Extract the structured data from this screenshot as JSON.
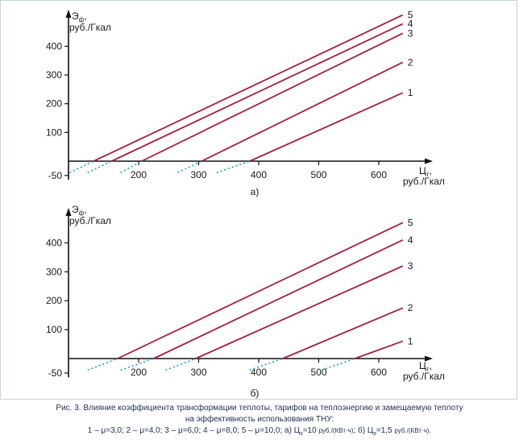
{
  "charts": [
    {
      "panel_label": "а)",
      "y_label_top": "Э",
      "y_label_sub": "ф",
      "y_label_bottom": "руб./Гкал",
      "x_label_top": "Ц",
      "x_label_sub": "т",
      "x_label_bottom": "руб./Гкал"
    },
    {
      "panel_label": "б)",
      "y_label_top": "Э",
      "y_label_sub": "ф",
      "y_label_bottom": "руб./Гкал",
      "x_label_top": "Ц",
      "x_label_sub": "т",
      "x_label_bottom": "руб./Гкал"
    }
  ],
  "caption": {
    "line1": "Рис. 3. Влияние коэффициента трансформации теплоты, тарифов на теплоэнергию и замещаемую теплоту",
    "line2": "на эффективность использования ТНУ:",
    "line3_a": "1 – μ=3,0; 2 – μ=4,0; 3 – μ=6,0; 4 – μ=8,0; 5 – μ=10,0; а) Ц",
    "line3_sub1": "э",
    "line3_b": "=10",
    "line3_unit1": "руб./(КВт·ч)",
    "line3_c": "; б) Ц",
    "line3_sub2": "э",
    "line3_d": "=1,5",
    "line3_unit2": "руб./(КВт·ч)",
    "line3_e": "."
  },
  "colors": {
    "series_line": "#a3203d",
    "dotted_extension": "#1f9bd7",
    "axis": "#111111",
    "frame": "#c8d4e3"
  },
  "chart_data": [
    {
      "type": "line",
      "xlim": [
        0,
        650
      ],
      "ylim": [
        -70,
        500
      ],
      "x_ticks": [
        200,
        300,
        400,
        500,
        600
      ],
      "y_ticks": [
        -50,
        100,
        200,
        300,
        400
      ],
      "grid": false,
      "series": [
        {
          "name": "1",
          "solid": [
            [
              385,
              0
            ],
            [
              640,
              238
            ]
          ],
          "dotted": [
            [
              330,
              -40
            ],
            [
              385,
              0
            ]
          ]
        },
        {
          "name": "2",
          "solid": [
            [
              305,
              0
            ],
            [
              640,
              344
            ]
          ],
          "dotted": [
            [
              265,
              -40
            ],
            [
              305,
              0
            ]
          ]
        },
        {
          "name": "3",
          "solid": [
            [
              205,
              0
            ],
            [
              640,
              445
            ]
          ],
          "dotted": [
            [
              170,
              -40
            ],
            [
              205,
              0
            ]
          ]
        },
        {
          "name": "4",
          "solid": [
            [
              155,
              0
            ],
            [
              640,
              478
            ]
          ],
          "dotted": [
            [
              115,
              -40
            ],
            [
              155,
              0
            ]
          ]
        },
        {
          "name": "5",
          "solid": [
            [
              125,
              0
            ],
            [
              640,
              509
            ]
          ],
          "dotted": [
            [
              85,
              -40
            ],
            [
              125,
              0
            ]
          ]
        }
      ]
    },
    {
      "type": "line",
      "xlim": [
        0,
        650
      ],
      "ylim": [
        -70,
        500
      ],
      "x_ticks": [
        200,
        300,
        400,
        500,
        600
      ],
      "y_ticks": [
        -50,
        100,
        200,
        300,
        400
      ],
      "grid": false,
      "series": [
        {
          "name": "1",
          "solid": [
            [
              560,
              0
            ],
            [
              640,
              60
            ]
          ],
          "dotted": [
            [
              505,
              -40
            ],
            [
              560,
              0
            ]
          ]
        },
        {
          "name": "2",
          "solid": [
            [
              440,
              0
            ],
            [
              640,
              175
            ]
          ],
          "dotted": [
            [
              385,
              -40
            ],
            [
              440,
              0
            ]
          ]
        },
        {
          "name": "3",
          "solid": [
            [
              295,
              0
            ],
            [
              640,
              320
            ]
          ],
          "dotted": [
            [
              245,
              -40
            ],
            [
              295,
              0
            ]
          ]
        },
        {
          "name": "4",
          "solid": [
            [
              225,
              0
            ],
            [
              640,
              410
            ]
          ],
          "dotted": [
            [
              170,
              -40
            ],
            [
              225,
              0
            ]
          ]
        },
        {
          "name": "5",
          "solid": [
            [
              165,
              0
            ],
            [
              640,
              470
            ]
          ],
          "dotted": [
            [
              115,
              -40
            ],
            [
              165,
              0
            ]
          ]
        }
      ]
    }
  ]
}
